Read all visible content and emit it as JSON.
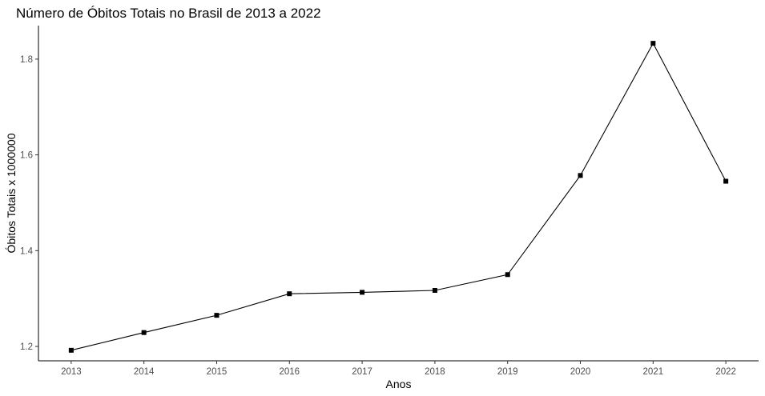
{
  "chart_data": {
    "type": "line",
    "title": "Número de Óbitos Totais no Brasil de 2013 a 2022",
    "xlabel": "Anos",
    "ylabel": "Óbitos Totais x 1000000",
    "x": [
      2013,
      2014,
      2015,
      2016,
      2017,
      2018,
      2019,
      2020,
      2021,
      2022
    ],
    "x_tick_labels": [
      "2013",
      "2014",
      "2015",
      "2016",
      "2017",
      "2018",
      "2019",
      "2020",
      "2021",
      "2022"
    ],
    "y_tick_values": [
      1.2,
      1.4,
      1.6,
      1.8
    ],
    "y_tick_labels": [
      "1.2",
      "1.4",
      "1.6",
      "1.8"
    ],
    "ylim": [
      1.17,
      1.87
    ],
    "xlim": [
      2012.55,
      2022.45
    ],
    "series": [
      {
        "values": [
          1.192,
          1.229,
          1.265,
          1.31,
          1.313,
          1.317,
          1.35,
          1.557,
          1.833,
          1.545
        ]
      }
    ],
    "grid": false,
    "legend": "none",
    "line_color": "#000000",
    "marker": "square"
  }
}
